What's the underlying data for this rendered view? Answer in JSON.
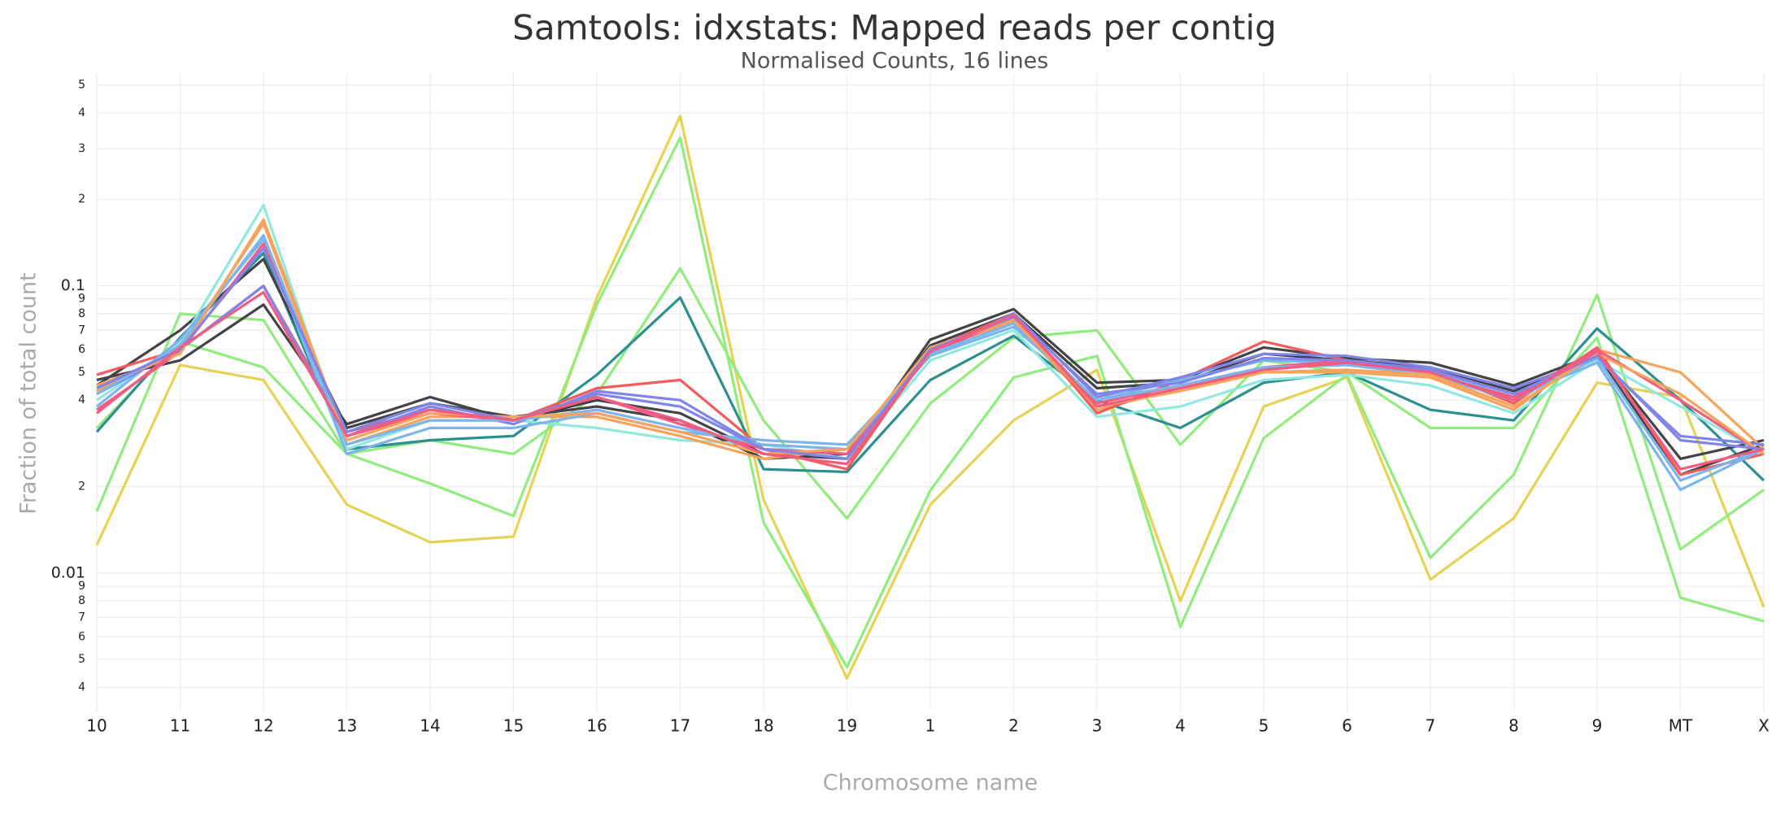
{
  "chart_data": {
    "type": "line",
    "title": "Samtools: idxstats: Mapped reads per contig",
    "subtitle": "Normalised Counts, 16 lines",
    "x_label": "Chromosome name",
    "y_label": "Fraction of total count",
    "log_scale": true,
    "grid": true,
    "ylim": [
      0.0033,
      0.55
    ],
    "yticks": [
      {
        "value": 0.004,
        "label": "4"
      },
      {
        "value": 0.005,
        "label": "5"
      },
      {
        "value": 0.006,
        "label": "6"
      },
      {
        "value": 0.007,
        "label": "7"
      },
      {
        "value": 0.008,
        "label": "8"
      },
      {
        "value": 0.009,
        "label": "9"
      },
      0.01,
      {
        "value": 0.02,
        "label": "2"
      },
      {
        "value": 0.04,
        "label": "4"
      },
      {
        "value": 0.05,
        "label": "5"
      },
      {
        "value": 0.06,
        "label": "6"
      },
      {
        "value": 0.07,
        "label": "7"
      },
      {
        "value": 0.08,
        "label": "8"
      },
      {
        "value": 0.09,
        "label": "9"
      },
      0.1,
      {
        "value": 0.2,
        "label": "2"
      },
      {
        "value": 0.3,
        "label": "3"
      },
      {
        "value": 0.4,
        "label": "4"
      },
      {
        "value": 0.5,
        "label": "5"
      }
    ],
    "categories": [
      "10",
      "11",
      "12",
      "13",
      "14",
      "15",
      "16",
      "17",
      "18",
      "19",
      "1",
      "2",
      "3",
      "4",
      "5",
      "6",
      "7",
      "8",
      "9",
      "MT",
      "X"
    ],
    "series": [
      {
        "color": "#e4d354",
        "values": [
          0.0125,
          0.053,
          0.047,
          0.0173,
          0.0128,
          0.0134,
          0.091,
          0.39,
          0.018,
          0.0043,
          0.0173,
          0.034,
          0.051,
          0.008,
          0.038,
          0.048,
          0.0095,
          0.0155,
          0.046,
          0.041,
          0.0076
        ]
      },
      {
        "color": "#90ed7d",
        "values": [
          0.0164,
          0.08,
          0.076,
          0.026,
          0.0205,
          0.0158,
          0.086,
          0.328,
          0.015,
          0.0047,
          0.0194,
          0.048,
          0.057,
          0.0065,
          0.0295,
          0.049,
          0.0113,
          0.022,
          0.093,
          0.0121,
          0.0195
        ]
      },
      {
        "color": "#90ed7d",
        "values": [
          0.032,
          0.064,
          0.052,
          0.026,
          0.029,
          0.026,
          0.042,
          0.115,
          0.034,
          0.0155,
          0.039,
          0.066,
          0.07,
          0.028,
          0.055,
          0.05,
          0.032,
          0.032,
          0.066,
          0.0082,
          0.0068
        ]
      },
      {
        "color": "#2b908f",
        "values": [
          0.031,
          0.066,
          0.13,
          0.027,
          0.029,
          0.03,
          0.049,
          0.091,
          0.023,
          0.0225,
          0.047,
          0.067,
          0.04,
          0.032,
          0.046,
          0.05,
          0.037,
          0.034,
          0.071,
          0.04,
          0.021
        ]
      },
      {
        "color": "#434348",
        "values": [
          0.047,
          0.055,
          0.086,
          0.033,
          0.041,
          0.034,
          0.04,
          0.036,
          0.026,
          0.025,
          0.065,
          0.083,
          0.046,
          0.047,
          0.061,
          0.056,
          0.054,
          0.045,
          0.058,
          0.025,
          0.029
        ]
      },
      {
        "color": "#434348",
        "values": [
          0.045,
          0.07,
          0.124,
          0.032,
          0.039,
          0.035,
          0.038,
          0.034,
          0.025,
          0.026,
          0.062,
          0.08,
          0.044,
          0.046,
          0.058,
          0.055,
          0.052,
          0.043,
          0.057,
          0.022,
          0.028
        ]
      },
      {
        "color": "#91e8e1",
        "values": [
          0.04,
          0.063,
          0.191,
          0.027,
          0.034,
          0.034,
          0.032,
          0.029,
          0.028,
          0.025,
          0.055,
          0.07,
          0.035,
          0.038,
          0.047,
          0.049,
          0.045,
          0.036,
          0.055,
          0.038,
          0.026
        ]
      },
      {
        "color": "#f7a35c",
        "values": [
          0.043,
          0.06,
          0.165,
          0.028,
          0.035,
          0.035,
          0.035,
          0.03,
          0.025,
          0.027,
          0.06,
          0.075,
          0.037,
          0.044,
          0.05,
          0.05,
          0.048,
          0.037,
          0.06,
          0.05,
          0.027
        ]
      },
      {
        "color": "#f45b5b",
        "values": [
          0.049,
          0.06,
          0.1,
          0.031,
          0.037,
          0.034,
          0.044,
          0.047,
          0.027,
          0.023,
          0.06,
          0.08,
          0.036,
          0.047,
          0.064,
          0.055,
          0.051,
          0.039,
          0.061,
          0.022,
          0.026
        ]
      },
      {
        "color": "#7cb5ec",
        "values": [
          0.038,
          0.065,
          0.145,
          0.026,
          0.032,
          0.032,
          0.036,
          0.031,
          0.029,
          0.028,
          0.057,
          0.072,
          0.04,
          0.047,
          0.055,
          0.054,
          0.05,
          0.041,
          0.054,
          0.0195,
          0.027
        ]
      },
      {
        "color": "#8085e9",
        "values": [
          0.042,
          0.06,
          0.1,
          0.03,
          0.038,
          0.033,
          0.043,
          0.04,
          0.027,
          0.026,
          0.058,
          0.08,
          0.041,
          0.048,
          0.058,
          0.057,
          0.052,
          0.044,
          0.056,
          0.03,
          0.028
        ]
      },
      {
        "color": "#f15c80",
        "values": [
          0.037,
          0.059,
          0.14,
          0.03,
          0.036,
          0.034,
          0.041,
          0.033,
          0.027,
          0.026,
          0.058,
          0.078,
          0.039,
          0.045,
          0.052,
          0.055,
          0.049,
          0.041,
          0.06,
          0.04,
          0.026
        ]
      },
      {
        "color": "#7cb5ec",
        "values": [
          0.042,
          0.062,
          0.15,
          0.028,
          0.034,
          0.034,
          0.037,
          0.032,
          0.028,
          0.027,
          0.058,
          0.074,
          0.04,
          0.045,
          0.052,
          0.053,
          0.049,
          0.04,
          0.056,
          0.021,
          0.027
        ]
      },
      {
        "color": "#f7a35c",
        "values": [
          0.045,
          0.058,
          0.17,
          0.029,
          0.036,
          0.035,
          0.036,
          0.031,
          0.026,
          0.027,
          0.061,
          0.076,
          0.038,
          0.043,
          0.05,
          0.051,
          0.049,
          0.038,
          0.058,
          0.042,
          0.026
        ]
      },
      {
        "color": "#8085e9",
        "values": [
          0.044,
          0.06,
          0.135,
          0.031,
          0.039,
          0.034,
          0.042,
          0.038,
          0.027,
          0.025,
          0.06,
          0.078,
          0.042,
          0.046,
          0.056,
          0.055,
          0.051,
          0.042,
          0.057,
          0.029,
          0.027
        ]
      },
      {
        "color": "#f15c80",
        "values": [
          0.036,
          0.061,
          0.095,
          0.03,
          0.037,
          0.034,
          0.041,
          0.034,
          0.026,
          0.024,
          0.059,
          0.079,
          0.038,
          0.044,
          0.051,
          0.054,
          0.05,
          0.04,
          0.059,
          0.023,
          0.027
        ]
      }
    ]
  }
}
